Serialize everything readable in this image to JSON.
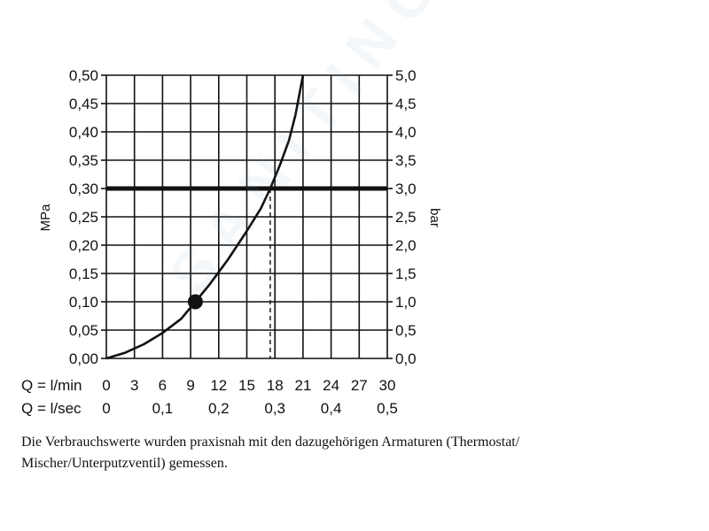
{
  "chart_data": {
    "type": "line",
    "ylabel_left": "MPa",
    "ylabel_right": "bar",
    "xlim": [
      0,
      30
    ],
    "ylim": [
      0,
      0.5
    ],
    "grid": true,
    "x_ticks": [
      0,
      3,
      6,
      9,
      12,
      15,
      18,
      21,
      24,
      27,
      30
    ],
    "y_ticks_left": [
      "0,00",
      "0,05",
      "0,10",
      "0,15",
      "0,20",
      "0,25",
      "0,30",
      "0,35",
      "0,40",
      "0,45",
      "0,50"
    ],
    "y_ticks_right": [
      "0,0",
      "0,5",
      "1,0",
      "1,5",
      "2,0",
      "2,5",
      "3,0",
      "3,5",
      "4,0",
      "4,5",
      "5,0"
    ],
    "row_lmin_label": "Q = l/min",
    "row_lmin_ticks": [
      "0",
      "3",
      "6",
      "9",
      "12",
      "15",
      "18",
      "21",
      "24",
      "27",
      "30"
    ],
    "row_lsec_label": "Q = l/sec",
    "row_lsec_ticks": [
      {
        "label": "0",
        "x": 0
      },
      {
        "label": "0,1",
        "x": 6
      },
      {
        "label": "0,2",
        "x": 12
      },
      {
        "label": "0,3",
        "x": 18
      },
      {
        "label": "0,4",
        "x": 24
      },
      {
        "label": "0,5",
        "x": 30
      }
    ],
    "series": [
      {
        "x": [
          0,
          2,
          4,
          6,
          8,
          9.5,
          11,
          13,
          15,
          16.5,
          17.5,
          18.5,
          19.5,
          20.2,
          21.0
        ],
        "y": [
          0.0,
          0.01,
          0.025,
          0.045,
          0.07,
          0.1,
          0.13,
          0.175,
          0.225,
          0.265,
          0.3,
          0.34,
          0.385,
          0.43,
          0.5
        ],
        "color": "#111111"
      }
    ],
    "marker_point": {
      "x": 9.5,
      "y": 0.1
    },
    "reference_line_y": 0.3,
    "reference_dashed_x": 17.5
  },
  "caption": {
    "line1": "Die Verbrauchswerte wurden praxisnah mit den dazugehörigen Armaturen (Thermostat/",
    "line2": "Mischer/Unterputzventil) gemessen."
  },
  "watermark": "SANITINO"
}
